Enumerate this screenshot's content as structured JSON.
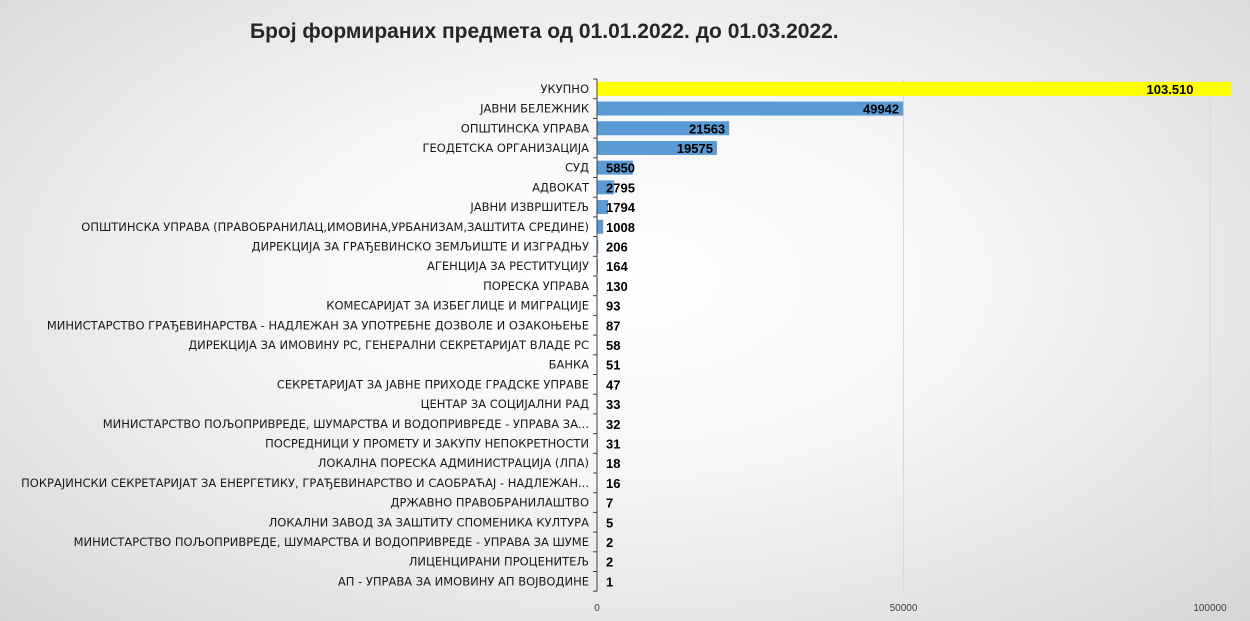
{
  "chart_data": {
    "type": "bar",
    "orientation": "horizontal",
    "title": "Број формираних предмета од 01.01.2022. до 01.03.2022.",
    "xlim": [
      0,
      100000
    ],
    "x_ticks": [
      0,
      50000,
      100000
    ],
    "x_tick_labels": [
      "0",
      "50000",
      "100000"
    ],
    "grid": "vertical",
    "colors": {
      "highlight": "#ffff00",
      "bar": "#5b9bd5",
      "axis": "#404040",
      "grid": "#d9d9d9"
    },
    "categories": [
      "УКУПНО",
      "ЈАВНИ БЕЛЕЖНИК",
      "ОПШТИНСКА УПРАВА",
      "ГЕОДЕТСКА ОРГАНИЗАЦИЈА",
      "СУД",
      "АДВОКАТ",
      "ЈАВНИ ИЗВРШИТЕЉ",
      "ОПШТИНСКА УПРАВА (ПРАВОБРАНИЛАЦ,ИМОВИНА,УРБАНИЗАМ,ЗАШТИТА  СРЕДИНЕ)",
      "ДИРЕКЦИЈА ЗА ГРАЂЕВИНСКО ЗЕМЉИШТЕ И ИЗГРАДЊУ",
      "АГЕНЦИЈА ЗА РЕСТИТУЦИЈУ",
      "ПОРЕСКА  УПРАВА",
      "КОМЕСАРИЈАТ  ЗА  ИЗБЕГЛИЦЕ И МИГРАЦИЈЕ",
      "МИНИСТАРСТВО  ГРАЂЕВИНАРСТВА  - НАДЛЕЖАН ЗА УПОТРЕБНЕ ДОЗВОЛЕ И ОЗАКОЊЕЊЕ",
      "ДИРЕКЦИЈА ЗА ИМОВИНУ РС, ГЕНЕРАЛНИ СЕКРЕТАРИЈАТ  ВЛАДЕ РС",
      "БАНКА",
      "СЕКРЕТАРИЈАТ  ЗА ЈАВНЕ ПРИХОДЕ  ГРАДСКЕ  УПРАВЕ",
      "ЦЕНТАР ЗА СОЦИЈАЛНИ  РАД",
      "МИНИСТАРСТВО  ПОЉОПРИВРЕДЕ, ШУМАРСТВА И ВОДОПРИВРЕДЕ  - УПРАВА ЗА...",
      "ПОСРЕДНИЦИ  У ПРОМЕТУ И ЗАКУПУ НЕПОКРЕТНОСТИ",
      "ЛОКАЛНА ПОРЕСКА  АДМИНИСТРАЦИЈА  (ЛПА)",
      "ПОКРАЈИНСКИ  СЕКРЕТАРИЈАТ  ЗА ЕНЕРГЕТИКУ, ГРАЂЕВИНАРСТВО  И САОБРАЋАЈ  - НАДЛЕЖАН...",
      "ДРЖАВНО ПРАВОБРАНИЛАШТВО",
      "ЛОКАЛНИ  ЗАВОД ЗА ЗАШТИТУ СПОМЕНИКА КУЛТУРА",
      "МИНИСТАРСТВО  ПОЉОПРИВРЕДЕ, ШУМАРСТВА И ВОДОПРИВРЕДЕ  - УПРАВА ЗА ШУМЕ",
      "ЛИЦЕНЦИРАНИ  ПРОЦЕНИТЕЉ",
      "АП - УПРАВА ЗА ИМОВИНУ АП ВОЈВОДИНЕ"
    ],
    "values": [
      103510,
      49942,
      21563,
      19575,
      5850,
      2795,
      1794,
      1008,
      206,
      164,
      130,
      93,
      87,
      58,
      51,
      47,
      33,
      32,
      31,
      18,
      16,
      7,
      5,
      2,
      2,
      1
    ],
    "value_labels": [
      "103.510",
      "49942",
      "21563",
      "19575",
      "5850",
      "2795",
      "1794",
      "1008",
      "206",
      "164",
      "130",
      "93",
      "87",
      "58",
      "51",
      "47",
      "33",
      "32",
      "31",
      "18",
      "16",
      "7",
      "5",
      "2",
      "2",
      "1"
    ],
    "highlight_index": 0
  }
}
